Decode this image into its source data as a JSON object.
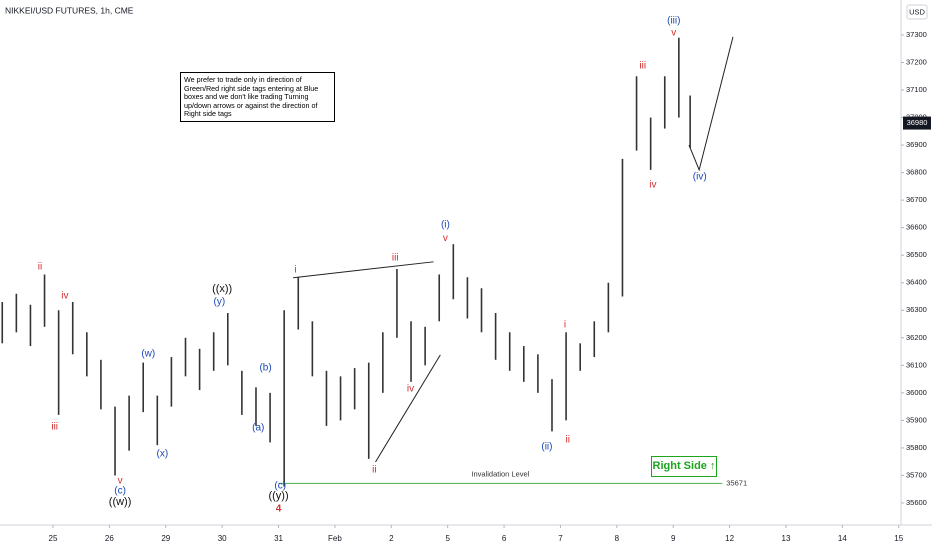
{
  "chart_data": {
    "type": "highlow",
    "title": "NIKKEI/USD FUTURES, 1h, CME",
    "currency": "USD",
    "color": "#333333",
    "x": [
      -0.9,
      -0.65,
      -0.4,
      -0.15,
      0.1,
      0.35,
      0.6,
      0.85,
      1.1,
      1.35,
      1.6,
      1.85,
      2.1,
      2.35,
      2.6,
      2.85,
      3.1,
      3.35,
      3.6,
      3.85,
      4.1,
      4.35,
      4.6,
      4.85,
      5.1,
      5.35,
      5.6,
      5.85,
      6.1,
      6.35,
      6.6,
      6.85,
      7.1,
      7.35,
      7.6,
      7.85,
      8.1,
      8.35,
      8.6,
      8.85,
      9.1,
      9.35,
      9.6,
      9.85,
      10.1,
      10.35,
      10.6,
      10.85,
      11.1,
      11.3
    ],
    "high": [
      36330,
      36360,
      36320,
      36430,
      36300,
      36330,
      36220,
      36120,
      35950,
      35990,
      36110,
      35990,
      36130,
      36200,
      36160,
      36220,
      36290,
      36080,
      36020,
      36000,
      36300,
      36420,
      36260,
      36080,
      36060,
      36090,
      36110,
      36220,
      36450,
      36260,
      36240,
      36430,
      36540,
      36420,
      36380,
      36290,
      36220,
      36170,
      36140,
      36050,
      36220,
      36180,
      36260,
      36400,
      36850,
      37150,
      37000,
      37150,
      37290,
      37080
    ],
    "low": [
      36180,
      36220,
      36170,
      36240,
      35920,
      36140,
      36060,
      35940,
      35700,
      35790,
      35930,
      35810,
      35950,
      36060,
      36010,
      36080,
      36100,
      35920,
      35880,
      35820,
      35660,
      36230,
      36060,
      35880,
      35900,
      35940,
      35760,
      36000,
      36200,
      36040,
      36100,
      36260,
      36340,
      36270,
      36220,
      36120,
      36080,
      36040,
      36000,
      35860,
      35900,
      36080,
      36130,
      36220,
      36350,
      36880,
      36810,
      36960,
      37000,
      36890
    ],
    "xlim": [
      -0.94,
      15.04
    ],
    "ylim": [
      35520,
      37427
    ],
    "xticks": [
      {
        "value": 0,
        "label": "25"
      },
      {
        "value": 1,
        "label": "26"
      },
      {
        "value": 2,
        "label": "29"
      },
      {
        "value": 3,
        "label": "30"
      },
      {
        "value": 4,
        "label": "31"
      },
      {
        "value": 5,
        "label": "Feb"
      },
      {
        "value": 6,
        "label": "2"
      },
      {
        "value": 7,
        "label": "5"
      },
      {
        "value": 8,
        "label": "6"
      },
      {
        "value": 9,
        "label": "7"
      },
      {
        "value": 10,
        "label": "8"
      },
      {
        "value": 11,
        "label": "9"
      },
      {
        "value": 12,
        "label": "12"
      },
      {
        "value": 13,
        "label": "13"
      },
      {
        "value": 14,
        "label": "14"
      },
      {
        "value": 15,
        "label": "15"
      }
    ],
    "yticks": [
      35600,
      35700,
      35800,
      35900,
      36000,
      36100,
      36200,
      36300,
      36400,
      36500,
      36600,
      36700,
      36800,
      36900,
      37000,
      37100,
      37200,
      37300
    ],
    "last_price": 36980,
    "invalidation": {
      "label": "Invalidation Level",
      "value": 35671,
      "x": [
        4.0,
        11.87
      ],
      "color": "#4caf50"
    },
    "note": "We prefer to trade only in direction of Green/Red right side tags entering at Blue boxes and we don't like trading Turning up/down arrows or against the direction of Right side tags",
    "right_side_tag": "Right Side ↑",
    "drawings": [
      {
        "x": [
          4.26,
          6.75
        ],
        "y": [
          36418,
          36476
        ]
      },
      {
        "x": [
          5.72,
          6.87
        ],
        "y": [
          35749,
          36138
        ]
      },
      {
        "x": [
          11.28,
          11.46,
          12.06
        ],
        "y": [
          36900,
          36810,
          37293
        ]
      }
    ],
    "annotations": [
      {
        "text": "ii",
        "color": "#d32f2f",
        "x": -0.23,
        "y": 36457
      },
      {
        "text": "iii",
        "color": "#d32f2f",
        "x": 0.03,
        "y": 35876
      },
      {
        "text": "iv",
        "color": "#d32f2f",
        "x": 0.21,
        "y": 36352
      },
      {
        "text": "v",
        "color": "#d32f2f",
        "x": 1.19,
        "y": 35680
      },
      {
        "text": "(c)",
        "color": "#1a47b8",
        "x": 1.19,
        "y": 35644
      },
      {
        "text": "((w))",
        "color": "#111111",
        "x": 1.19,
        "y": 35604
      },
      {
        "text": "(w)",
        "color": "#1a47b8",
        "x": 1.69,
        "y": 36141
      },
      {
        "text": "(x)",
        "color": "#1a47b8",
        "x": 1.94,
        "y": 35778
      },
      {
        "text": "(y)",
        "color": "#1a47b8",
        "x": 2.95,
        "y": 36330
      },
      {
        "text": "((x))",
        "color": "#111111",
        "x": 3.0,
        "y": 36377
      },
      {
        "text": "(a)",
        "color": "#1a47b8",
        "x": 3.64,
        "y": 35872
      },
      {
        "text": "(b)",
        "color": "#1a47b8",
        "x": 3.77,
        "y": 36090
      },
      {
        "text": "(c)",
        "color": "#1a47b8",
        "x": 4.03,
        "y": 35662
      },
      {
        "text": "((y))",
        "color": "#111111",
        "x": 4.0,
        "y": 35625
      },
      {
        "text": "4",
        "color": "#d32f2f",
        "x": 4.0,
        "y": 35578
      },
      {
        "text": "i",
        "color": "#d32f2f",
        "x": 4.3,
        "y": 36446
      },
      {
        "text": "ii",
        "color": "#d32f2f",
        "x": 5.7,
        "y": 35720
      },
      {
        "text": "iii",
        "color": "#d32f2f",
        "x": 6.07,
        "y": 36490
      },
      {
        "text": "iv",
        "color": "#d32f2f",
        "x": 6.34,
        "y": 36014
      },
      {
        "text": "(i)",
        "color": "#1a47b8",
        "x": 6.96,
        "y": 36610
      },
      {
        "text": "v",
        "color": "#d32f2f",
        "x": 6.96,
        "y": 36562
      },
      {
        "text": "(ii)",
        "color": "#1a47b8",
        "x": 8.76,
        "y": 35803
      },
      {
        "text": "ii",
        "color": "#d32f2f",
        "x": 9.13,
        "y": 35829
      },
      {
        "text": "i",
        "color": "#d32f2f",
        "x": 9.08,
        "y": 36247
      },
      {
        "text": "iii",
        "color": "#d32f2f",
        "x": 10.46,
        "y": 37187
      },
      {
        "text": "iv",
        "color": "#d32f2f",
        "x": 10.64,
        "y": 36755
      },
      {
        "text": "(iii)",
        "color": "#1a47b8",
        "x": 11.01,
        "y": 37351
      },
      {
        "text": "v",
        "color": "#d32f2f",
        "x": 11.01,
        "y": 37307
      },
      {
        "text": "(iv)",
        "color": "#1a47b8",
        "x": 11.47,
        "y": 36784
      }
    ]
  }
}
